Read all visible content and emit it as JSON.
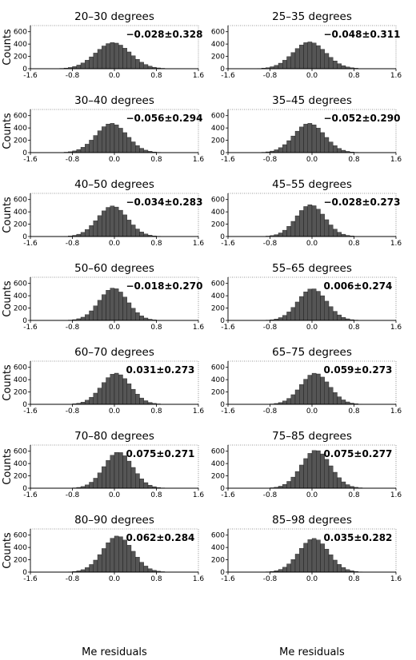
{
  "chart_data": {
    "type": "bar",
    "layout": "7 rows x 2 columns of histograms",
    "xlim": [
      -1.6,
      1.6
    ],
    "ylim": [
      0,
      700
    ],
    "xticks": [
      "-1.6",
      "-0.8",
      "0.0",
      "0.8",
      "1.6"
    ],
    "yticks": [
      "0",
      "200",
      "400",
      "600"
    ],
    "ylabel": "Counts",
    "xlabel": "Me residuals",
    "bin_width": 0.08,
    "panels": [
      {
        "title": "20–30 degrees",
        "stat": "−0.028±0.328",
        "mean": -0.028,
        "sd": 0.328,
        "peak": 420
      },
      {
        "title": "25–35 degrees",
        "stat": "−0.048±0.311",
        "mean": -0.048,
        "sd": 0.311,
        "peak": 430
      },
      {
        "title": "30–40 degrees",
        "stat": "−0.056±0.294",
        "mean": -0.056,
        "sd": 0.294,
        "peak": 470
      },
      {
        "title": "35–45 degrees",
        "stat": "−0.052±0.290",
        "mean": -0.052,
        "sd": 0.29,
        "peak": 470
      },
      {
        "title": "40–50 degrees",
        "stat": "−0.034±0.283",
        "mean": -0.034,
        "sd": 0.283,
        "peak": 490
      },
      {
        "title": "45–55 degrees",
        "stat": "−0.028±0.273",
        "mean": -0.028,
        "sd": 0.273,
        "peak": 510
      },
      {
        "title": "50–60 degrees",
        "stat": "−0.018±0.270",
        "mean": -0.018,
        "sd": 0.27,
        "peak": 520
      },
      {
        "title": "55–65 degrees",
        "stat": "0.006±0.274",
        "mean": 0.006,
        "sd": 0.274,
        "peak": 510
      },
      {
        "title": "60–70 degrees",
        "stat": "0.031±0.273",
        "mean": 0.031,
        "sd": 0.273,
        "peak": 500
      },
      {
        "title": "65–75 degrees",
        "stat": "0.059±0.273",
        "mean": 0.059,
        "sd": 0.273,
        "peak": 500
      },
      {
        "title": "70–80 degrees",
        "stat": "0.075±0.271",
        "mean": 0.075,
        "sd": 0.271,
        "peak": 580
      },
      {
        "title": "75–85 degrees",
        "stat": "0.075±0.277",
        "mean": 0.075,
        "sd": 0.277,
        "peak": 610
      },
      {
        "title": "80–90 degrees",
        "stat": "0.062±0.284",
        "mean": 0.062,
        "sd": 0.284,
        "peak": 580
      },
      {
        "title": "85–98 degrees",
        "stat": "0.035±0.282",
        "mean": 0.035,
        "sd": 0.282,
        "peak": 540
      }
    ]
  },
  "colors": {
    "bar_fill": "#555555",
    "bar_edge": "#111111",
    "frame": "#7a7a7a"
  }
}
